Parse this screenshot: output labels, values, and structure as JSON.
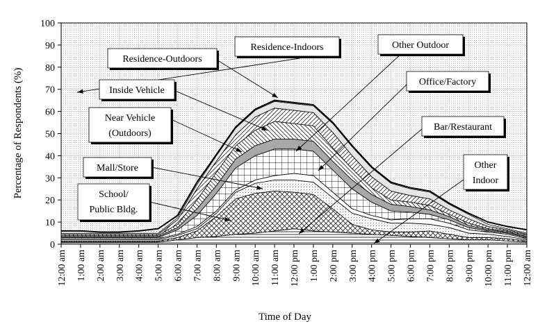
{
  "chart_data": {
    "type": "area",
    "stacked": true,
    "xlabel": "Time of Day",
    "ylabel": "Percentage of Respondents (%)",
    "ylim": [
      0,
      100
    ],
    "y_ticks": [
      0,
      10,
      20,
      30,
      40,
      50,
      60,
      70,
      80,
      90,
      100
    ],
    "x": [
      "12:00 am",
      "1:00 am",
      "2:00 am",
      "3:00 am",
      "4:00 am",
      "5:00 am",
      "6:00 am",
      "7:00 am",
      "8:00 am",
      "9:00 am",
      "10:00 am",
      "11:00 am",
      "12:00 pm",
      "1:00 pm",
      "2:00 pm",
      "3:00 pm",
      "4:00 pm",
      "5:00 pm",
      "6:00 pm",
      "7:00 pm",
      "8:00 pm",
      "9:00 pm",
      "10:00 pm",
      "11:00 pm",
      "12:00 am"
    ],
    "grid": true,
    "series": [
      {
        "name": "Other Indoor",
        "values": [
          1,
          1,
          1,
          1,
          1,
          1,
          2,
          3,
          3.5,
          4.5,
          5,
          6,
          7,
          6,
          5.5,
          5,
          4.5,
          4,
          3.5,
          3,
          2.5,
          2,
          2,
          1.5,
          1
        ]
      },
      {
        "name": "School/ Public Bldg.",
        "values": [
          0.5,
          0.5,
          0.5,
          0.5,
          0.5,
          0.5,
          1,
          3,
          9,
          16,
          18,
          18,
          16.5,
          16.5,
          10.5,
          4,
          2,
          1.5,
          2,
          3,
          2,
          1,
          1,
          1,
          0.5
        ]
      },
      {
        "name": "Mall/Store",
        "values": [
          0.5,
          0.5,
          0.5,
          0.5,
          0.5,
          0.5,
          1,
          1,
          1.5,
          3,
          4.5,
          5,
          5.5,
          5.5,
          5,
          5,
          5,
          4,
          4,
          3,
          3,
          2,
          1.5,
          1,
          0.5
        ]
      },
      {
        "name": "Bar/Restaurant",
        "values": [
          0.5,
          0.5,
          0.5,
          0.5,
          0.5,
          0.5,
          0.5,
          1,
          1,
          1,
          1.5,
          2,
          3,
          3,
          2.5,
          2,
          1.5,
          1.5,
          2,
          2.5,
          2,
          1.5,
          1,
          1,
          0.5
        ]
      },
      {
        "name": "Office/Factory",
        "values": [
          0.5,
          0.5,
          0.5,
          0.5,
          0.5,
          0.5,
          2,
          5,
          8,
          10,
          11,
          12,
          11,
          11,
          10,
          9,
          6,
          4,
          3,
          2,
          1.5,
          1,
          0.5,
          0.5,
          0.5
        ]
      },
      {
        "name": "Near Vehicle (Outdoors)",
        "values": [
          0.5,
          0.5,
          0.5,
          0.5,
          0.5,
          0.5,
          1,
          3,
          3.5,
          4,
          4.5,
          4.5,
          4.5,
          4.5,
          4,
          4,
          3.5,
          3,
          2.5,
          2,
          1.5,
          1,
          0.5,
          0.5,
          0.5
        ]
      },
      {
        "name": "Inside Vehicle",
        "values": [
          0.5,
          0.5,
          0.5,
          0.5,
          0.5,
          0.5,
          1.5,
          4,
          6,
          6,
          7,
          8,
          7,
          7,
          6,
          5,
          3,
          2,
          2,
          2,
          1,
          1,
          0.5,
          0.5,
          0.5
        ]
      },
      {
        "name": "Residence-Outdoors",
        "values": [
          0.5,
          0.5,
          0.5,
          0.5,
          0.5,
          0.5,
          2,
          5,
          5,
          5,
          6,
          6,
          6,
          6,
          7,
          6,
          5,
          4,
          3,
          3,
          2,
          2,
          1,
          0.5,
          0.5
        ]
      },
      {
        "name": "Other Outdoor",
        "values": [
          0.5,
          0.5,
          0.5,
          0.5,
          0.5,
          0.5,
          1,
          2,
          2.5,
          3,
          3,
          3,
          3,
          3,
          4,
          4,
          4,
          3.5,
          3,
          3,
          2.5,
          2,
          1,
          0.5,
          0.5
        ]
      },
      {
        "name": "Residence-Indoors",
        "values": [
          1,
          1,
          0.5,
          0.5,
          1,
          2,
          1,
          1,
          0.5,
          0.5,
          0.5,
          0.5,
          0.5,
          0.5,
          0.5,
          0.5,
          0.5,
          0.5,
          0.5,
          0.5,
          0.5,
          0.5,
          1,
          1,
          1.5
        ]
      }
    ],
    "annotations": [
      "Residence-Indoors",
      "Residence-Outdoors",
      "Other Outdoor",
      "Inside Vehicle",
      "Office/Factory",
      "Near Vehicle",
      "(Outdoors)",
      "Bar/Restaurant",
      "Mall/Store",
      "Other",
      "Indoor",
      "School/",
      "Public Bldg."
    ]
  }
}
